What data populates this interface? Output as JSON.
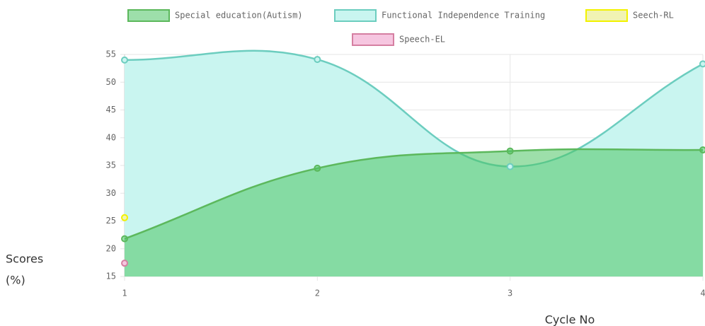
{
  "chart_data": {
    "type": "line",
    "x_label": "Cycle No",
    "y_label": [
      "Scores",
      "(%)"
    ],
    "x": [
      1,
      2,
      3,
      4
    ],
    "series": [
      {
        "name": "Special education(Autism)",
        "color": "#5cb85c",
        "fill": "rgba(76,196,100,0.55)",
        "values": [
          21.8,
          34.5,
          37.6,
          37.8
        ]
      },
      {
        "name": "Functional Independence Training",
        "color": "#6ccdbf",
        "fill": "#c9f5f0",
        "values": [
          54,
          54.1,
          34.8,
          53.3
        ]
      },
      {
        "name": "Seech-RL",
        "color": "#f2f200",
        "fill": "#f1f3b3",
        "values": [
          25.6,
          null,
          null,
          null
        ]
      },
      {
        "name": "Speech-EL",
        "color": "#d57fa1",
        "fill": "#f6c6e0",
        "values": [
          17.4,
          null,
          null,
          null
        ]
      }
    ],
    "xlim": [
      1,
      4
    ],
    "xticks": [
      1,
      2,
      3,
      4
    ],
    "ylim": [
      15,
      55
    ],
    "yticks": [
      15,
      20,
      25,
      30,
      35,
      40,
      45,
      50,
      55
    ],
    "grid": true
  }
}
